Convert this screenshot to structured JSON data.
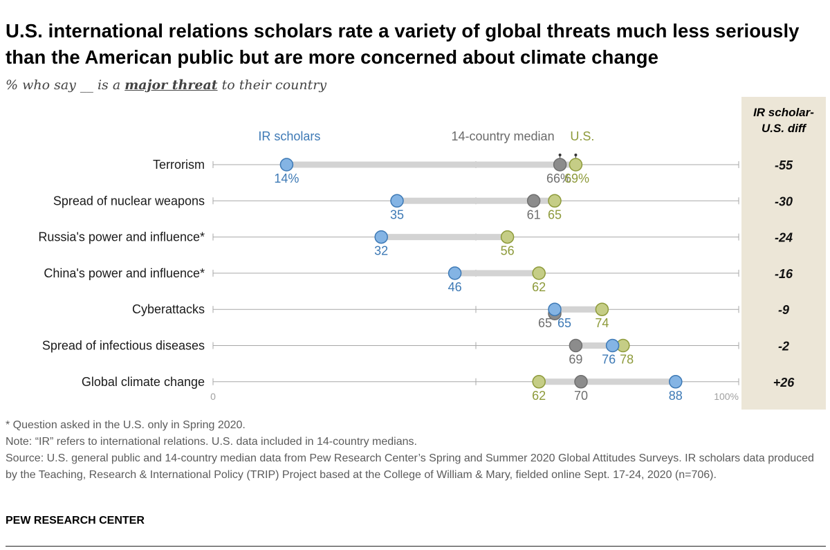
{
  "title": "U.S. international relations scholars rate a variety of global threats much less seriously than the American public but are more concerned about climate change",
  "subtitle": {
    "before": "% who say __ is a ",
    "emphasis": "major threat",
    "after": " to their country"
  },
  "colors": {
    "ir_scholars": "#3d79b5",
    "ir_scholars_fill": "#84b4e4",
    "median": "#6e6e6e",
    "median_fill": "#8c8c8c",
    "us": "#8d9a3a",
    "us_fill": "#c5cd86",
    "diff_column_bg": "#ece6d7",
    "range_bar": "#d3d3d3",
    "axis_line": "#a7a7a7"
  },
  "chart_data": {
    "type": "dot-range",
    "xlim": [
      0,
      100
    ],
    "tick_labels": {
      "start": "0",
      "end": "100%"
    },
    "legend": {
      "ir_scholars": "IR scholars",
      "median": "14-country median",
      "us": "U.S."
    },
    "diff_header": [
      "IR scholar-",
      "U.S. diff"
    ],
    "rows": [
      {
        "category": "Terrorism",
        "ir_scholars": 14,
        "median": 66,
        "us": 69,
        "diff": "-55",
        "labels": {
          "ir_scholars": "14%",
          "median": "66%",
          "us": "69%"
        }
      },
      {
        "category": "Spread of nuclear weapons",
        "ir_scholars": 35,
        "median": 61,
        "us": 65,
        "diff": "-30",
        "labels": {
          "ir_scholars": "35",
          "median": "61",
          "us": "65"
        }
      },
      {
        "category": "Russia's power and influence*",
        "ir_scholars": 32,
        "median": null,
        "us": 56,
        "diff": "-24",
        "labels": {
          "ir_scholars": "32",
          "median": null,
          "us": "56"
        }
      },
      {
        "category": "China's power and influence*",
        "ir_scholars": 46,
        "median": null,
        "us": 62,
        "diff": "-16",
        "labels": {
          "ir_scholars": "46",
          "median": null,
          "us": "62"
        }
      },
      {
        "category": "Cyberattacks",
        "ir_scholars": 65,
        "median": 65,
        "us": 74,
        "diff": "-9",
        "labels": {
          "ir_scholars": "65",
          "median": "65",
          "us": "74"
        }
      },
      {
        "category": "Spread of infectious diseases",
        "ir_scholars": 76,
        "median": 69,
        "us": 78,
        "diff": "-2",
        "labels": {
          "ir_scholars": "76",
          "median": "69",
          "us": "78"
        }
      },
      {
        "category": "Global climate change",
        "ir_scholars": 88,
        "median": 70,
        "us": 62,
        "diff": "+26",
        "labels": {
          "ir_scholars": "88",
          "median": "70",
          "us": "62"
        }
      }
    ]
  },
  "notes": {
    "asterisk": "* Question asked in the U.S. only in Spring 2020.",
    "note": "Note: “IR” refers to international relations. U.S. data included in 14-country medians.",
    "source": "Source: U.S. general public and 14-country median data from Pew Research Center’s Spring and Summer 2020 Global Attitudes Surveys. IR scholars data produced by the Teaching, Research & International Policy (TRIP) Project based at the College of William & Mary, fielded online Sept. 17-24, 2020 (n=706)."
  },
  "brand": "PEW RESEARCH CENTER"
}
